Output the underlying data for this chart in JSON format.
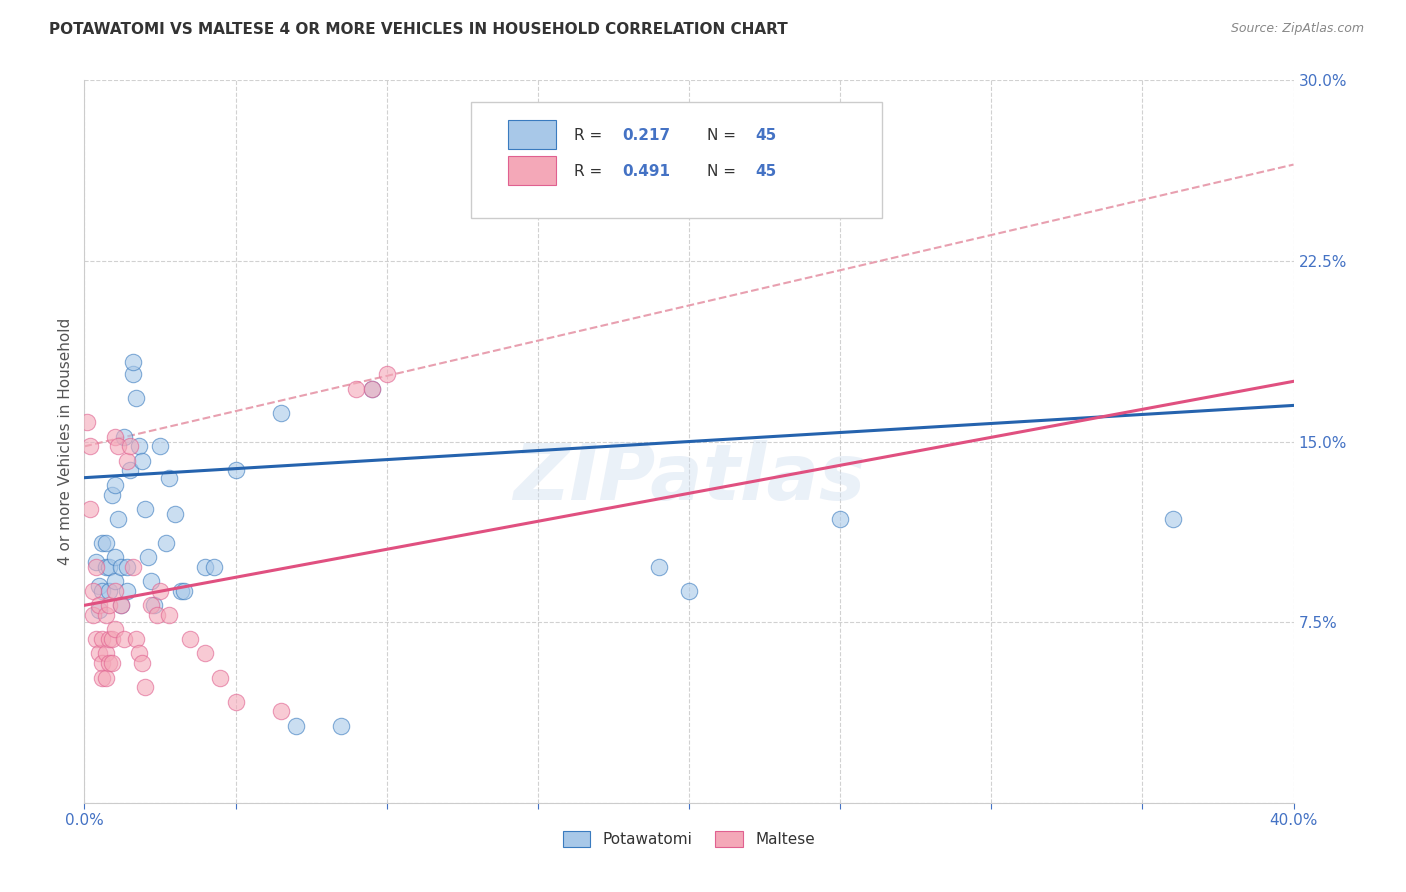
{
  "title": "POTAWATOMI VS MALTESE 4 OR MORE VEHICLES IN HOUSEHOLD CORRELATION CHART",
  "source": "Source: ZipAtlas.com",
  "ylabel": "4 or more Vehicles in Household",
  "xlim": [
    0.0,
    0.4
  ],
  "ylim": [
    0.0,
    0.3
  ],
  "xticks": [
    0.0,
    0.05,
    0.1,
    0.15,
    0.2,
    0.25,
    0.3,
    0.35,
    0.4
  ],
  "yticks": [
    0.0,
    0.075,
    0.15,
    0.225,
    0.3
  ],
  "watermark": "ZIPatlas",
  "legend_labels": [
    "Potawatomi",
    "Maltese"
  ],
  "blue_fill": "#a8c8e8",
  "pink_fill": "#f4a8b8",
  "blue_edge": "#3a7bbf",
  "pink_edge": "#e06090",
  "blue_line": "#2563ae",
  "pink_line": "#e05080",
  "pink_dashed": "#e8a0b0",
  "axis_label_color": "#4472C4",
  "grid_color": "#cccccc",
  "text_color": "#333333",
  "source_color": "#888888",
  "potawatomi_points": [
    [
      0.004,
      0.1
    ],
    [
      0.005,
      0.09
    ],
    [
      0.005,
      0.08
    ],
    [
      0.006,
      0.108
    ],
    [
      0.006,
      0.088
    ],
    [
      0.007,
      0.098
    ],
    [
      0.007,
      0.108
    ],
    [
      0.008,
      0.098
    ],
    [
      0.008,
      0.088
    ],
    [
      0.009,
      0.128
    ],
    [
      0.01,
      0.092
    ],
    [
      0.01,
      0.132
    ],
    [
      0.01,
      0.102
    ],
    [
      0.011,
      0.118
    ],
    [
      0.012,
      0.098
    ],
    [
      0.012,
      0.082
    ],
    [
      0.013,
      0.152
    ],
    [
      0.014,
      0.098
    ],
    [
      0.014,
      0.088
    ],
    [
      0.015,
      0.138
    ],
    [
      0.016,
      0.178
    ],
    [
      0.016,
      0.183
    ],
    [
      0.017,
      0.168
    ],
    [
      0.018,
      0.148
    ],
    [
      0.019,
      0.142
    ],
    [
      0.02,
      0.122
    ],
    [
      0.021,
      0.102
    ],
    [
      0.022,
      0.092
    ],
    [
      0.023,
      0.082
    ],
    [
      0.025,
      0.148
    ],
    [
      0.027,
      0.108
    ],
    [
      0.028,
      0.135
    ],
    [
      0.03,
      0.12
    ],
    [
      0.032,
      0.088
    ],
    [
      0.033,
      0.088
    ],
    [
      0.04,
      0.098
    ],
    [
      0.043,
      0.098
    ],
    [
      0.05,
      0.138
    ],
    [
      0.065,
      0.162
    ],
    [
      0.07,
      0.032
    ],
    [
      0.085,
      0.032
    ],
    [
      0.095,
      0.172
    ],
    [
      0.19,
      0.098
    ],
    [
      0.2,
      0.088
    ],
    [
      0.25,
      0.118
    ],
    [
      0.36,
      0.118
    ]
  ],
  "maltese_points": [
    [
      0.001,
      0.158
    ],
    [
      0.002,
      0.148
    ],
    [
      0.002,
      0.122
    ],
    [
      0.003,
      0.088
    ],
    [
      0.003,
      0.078
    ],
    [
      0.004,
      0.098
    ],
    [
      0.004,
      0.068
    ],
    [
      0.005,
      0.082
    ],
    [
      0.005,
      0.062
    ],
    [
      0.006,
      0.068
    ],
    [
      0.006,
      0.058
    ],
    [
      0.006,
      0.052
    ],
    [
      0.007,
      0.078
    ],
    [
      0.007,
      0.062
    ],
    [
      0.007,
      0.052
    ],
    [
      0.008,
      0.082
    ],
    [
      0.008,
      0.068
    ],
    [
      0.008,
      0.058
    ],
    [
      0.009,
      0.068
    ],
    [
      0.009,
      0.058
    ],
    [
      0.01,
      0.152
    ],
    [
      0.01,
      0.088
    ],
    [
      0.01,
      0.072
    ],
    [
      0.011,
      0.148
    ],
    [
      0.012,
      0.082
    ],
    [
      0.013,
      0.068
    ],
    [
      0.014,
      0.142
    ],
    [
      0.015,
      0.148
    ],
    [
      0.016,
      0.098
    ],
    [
      0.017,
      0.068
    ],
    [
      0.018,
      0.062
    ],
    [
      0.019,
      0.058
    ],
    [
      0.02,
      0.048
    ],
    [
      0.022,
      0.082
    ],
    [
      0.024,
      0.078
    ],
    [
      0.025,
      0.088
    ],
    [
      0.028,
      0.078
    ],
    [
      0.035,
      0.068
    ],
    [
      0.04,
      0.062
    ],
    [
      0.045,
      0.052
    ],
    [
      0.05,
      0.042
    ],
    [
      0.065,
      0.038
    ],
    [
      0.09,
      0.172
    ],
    [
      0.095,
      0.172
    ],
    [
      0.1,
      0.178
    ]
  ],
  "blue_trend": [
    0.0,
    0.135,
    0.4,
    0.165
  ],
  "pink_solid_trend": [
    0.0,
    0.082,
    0.4,
    0.175
  ],
  "pink_dashed_trend": [
    0.0,
    0.148,
    0.4,
    0.265
  ]
}
